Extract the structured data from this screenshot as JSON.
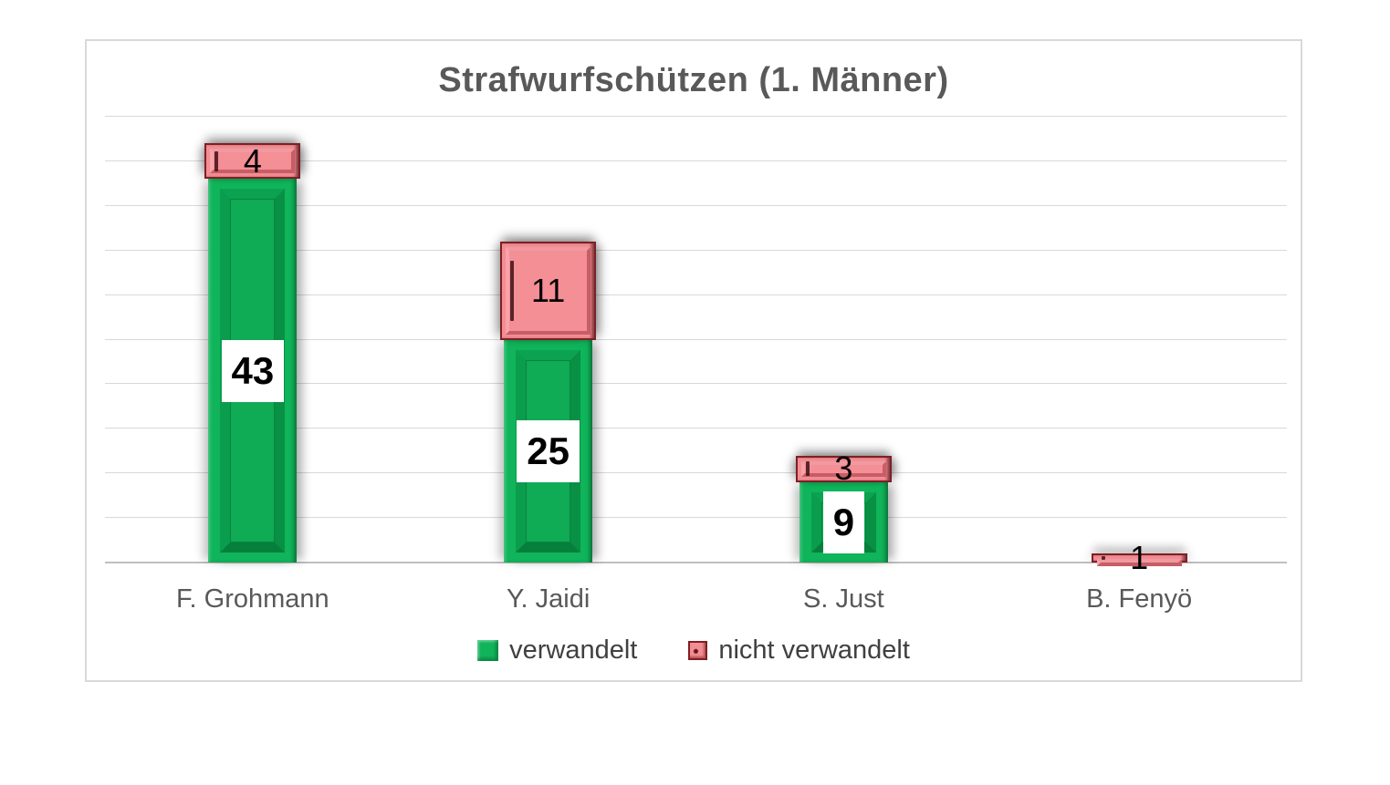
{
  "chart_data": {
    "type": "bar",
    "stacked": true,
    "title": "Strafwurfschützen (1. Männer)",
    "xlabel": "",
    "ylabel": "",
    "categories": [
      "F. Grohmann",
      "Y. Jaidi",
      "S. Just",
      "B. Fenyö"
    ],
    "series": [
      {
        "name": "verwandelt",
        "color": "#10b45a",
        "values": [
          43,
          25,
          9,
          0
        ]
      },
      {
        "name": "nicht verwandelt",
        "color": "#f48d93",
        "values": [
          4,
          11,
          3,
          1
        ]
      }
    ],
    "ylim": [
      0,
      50
    ],
    "gridline_step": 5,
    "grid": true,
    "y_axis_labels_visible": false,
    "legend_position": "bottom",
    "palette": {
      "verwandelt": "#10b45a",
      "nicht_verwandelt": "#f48d93",
      "gridline": "#d9d9d9",
      "axis_line": "#bfbfbf",
      "title_text": "#595959",
      "axis_text": "#595959",
      "legend_text": "#404040",
      "data_label_text": "#000000",
      "frame_border": "#d9d9d9"
    }
  }
}
